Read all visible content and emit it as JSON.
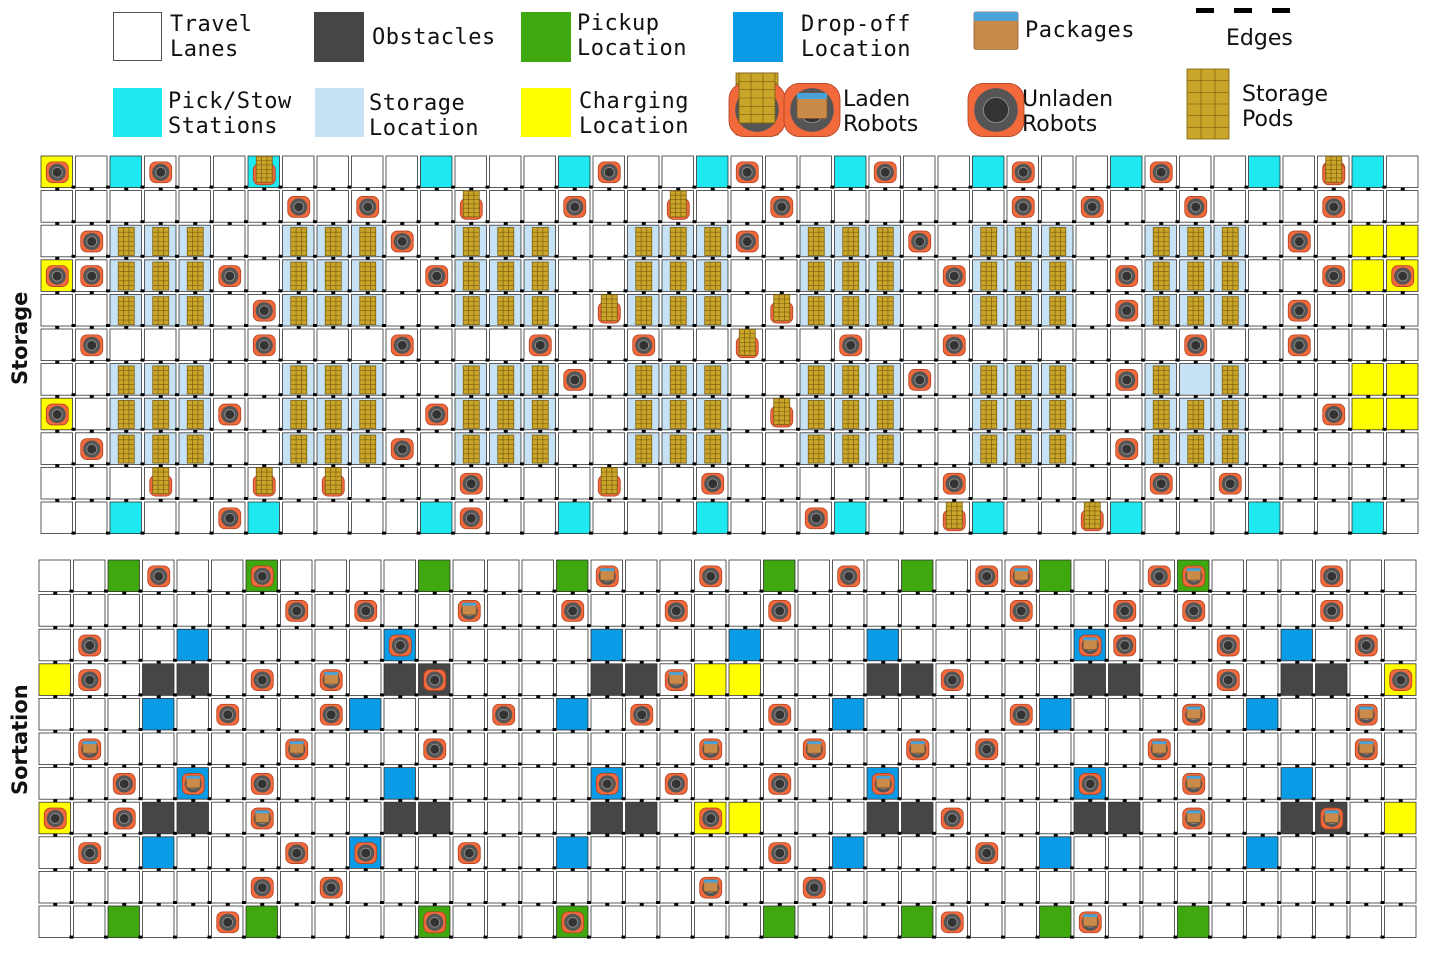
{
  "legend": {
    "travel_lanes": "Travel\nLanes",
    "obstacles": "Obstacles",
    "pickup": "Pickup\nLocation",
    "dropoff": "Drop-off\nLocation",
    "packages": "Packages",
    "edges": "Edges",
    "pick_stow": "Pick/Stow\nStations",
    "storage_loc": "Storage\nLocation",
    "charging": "Charging\nLocation",
    "laden": "Laden\nRobots",
    "unladen": "Unladen\nRobots",
    "pods": "Storage\nPods"
  },
  "sections": {
    "storage": "Storage",
    "sortation": "Sortation"
  },
  "colors": {
    "lane": "#ffffff",
    "obstacle": "#464646",
    "pickup": "#3ea80e",
    "dropoff": "#0a9be6",
    "pick_stow": "#1ee8f0",
    "storage_loc": "#c8e2f5",
    "charging": "#ffff00",
    "robot": "#f26a3c",
    "pod": "#c9a52a",
    "package": "#c98a4a"
  }
}
